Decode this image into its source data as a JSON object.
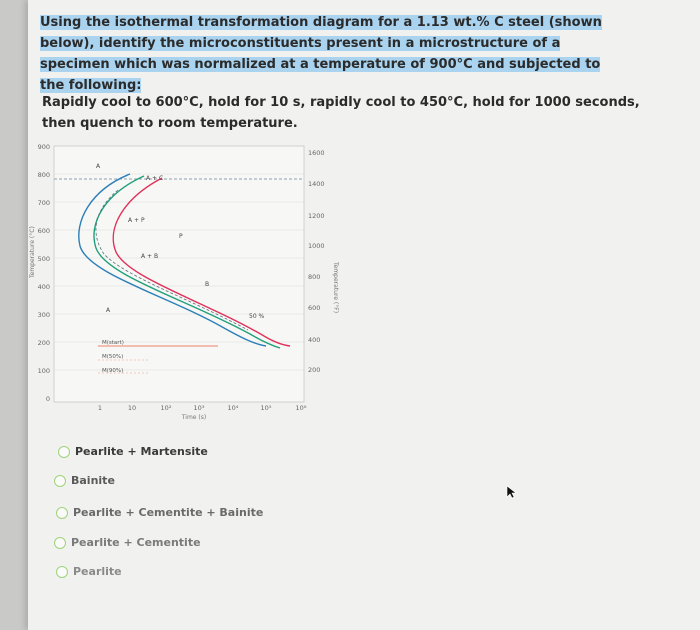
{
  "question": {
    "prompt": "Using the isothermal transformation diagram for a 1.13 wt.% C steel (shown below), identify the microconstituents present in a microstructure of a specimen which was normalized at a temperature of 900°C and subjected to the following:",
    "treatment": "Rapidly cool to 600°C, hold for 10 s, rapidly cool to 450°C, hold for 1000 seconds, then quench to room temperature."
  },
  "diagram": {
    "y_left_label": "Temperature (°C)",
    "y_right_label": "Temperature (°F)",
    "x_label": "Time (s)",
    "y_left_ticks": [
      "900",
      "800",
      "700",
      "600",
      "500",
      "400",
      "300",
      "200",
      "100",
      "0"
    ],
    "y_right_ticks": [
      "1600",
      "1400",
      "1200",
      "1000",
      "800",
      "600",
      "400",
      "200"
    ],
    "x_ticks": [
      "1",
      "10",
      "10²",
      "10³",
      "10⁴",
      "10⁵",
      "10⁶"
    ],
    "regions": {
      "austenite_top": "A",
      "a_plus_c": "A + C",
      "a_plus_p": "A + P",
      "pearlite": "P",
      "a_plus_b": "A + B",
      "bainite": "B",
      "austenite_low": "A",
      "fifty_percent": "50 %"
    },
    "martensite_lines": [
      "M(start)",
      "M(50%)",
      "M(90%)"
    ],
    "colors": {
      "eutectoid": "#8fa0b0",
      "start_curve": "#2a7fb8",
      "mid_curve": "#1fa07a",
      "end_curve": "#e0305a",
      "ms_line": "#ef9a86"
    }
  },
  "options": [
    "Pearlite + Martensite",
    "Bainite",
    "Pearlite + Cementite + Bainite",
    "Pearlite + Cementite",
    "Pearlite"
  ],
  "icons": {
    "cursor": "mouse-pointer-icon"
  }
}
